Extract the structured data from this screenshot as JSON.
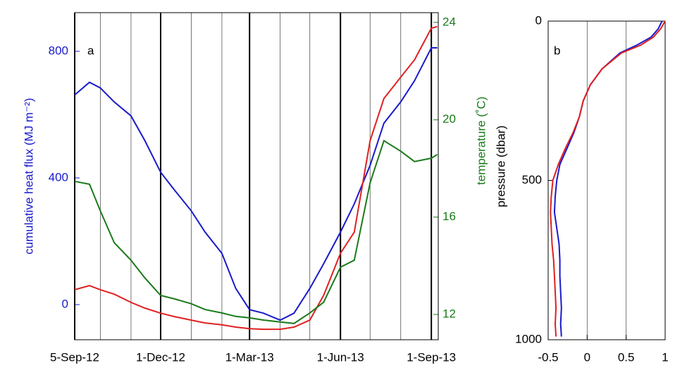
{
  "chart_data": [
    {
      "type": "line",
      "annotation": "a",
      "ylabel": "cumulative heat flux (MJ m⁻²)",
      "y2label": "temperature (˚C)",
      "x": [
        "2012-09-05",
        "2012-09-20",
        "2012-10-01",
        "2012-10-15",
        "2012-11-01",
        "2012-11-15",
        "2012-12-01",
        "2012-12-15",
        "2013-01-01",
        "2013-01-15",
        "2013-02-01",
        "2013-02-15",
        "2013-03-01",
        "2013-03-15",
        "2013-04-01",
        "2013-04-15",
        "2013-05-01",
        "2013-05-15",
        "2013-06-01",
        "2013-06-15",
        "2013-07-01",
        "2013-07-15",
        "2013-08-01",
        "2013-08-15",
        "2013-09-01",
        "2013-09-07"
      ],
      "xlim": [
        "2012-09-05",
        "2013-09-08"
      ],
      "xticks": [
        {
          "value": "2012-09-05",
          "label": "5-Sep-12"
        },
        {
          "value": "2012-12-01",
          "label": "1-Dec-12"
        },
        {
          "value": "2013-03-01",
          "label": "1-Mar-13"
        },
        {
          "value": "2013-06-01",
          "label": "1-Jun-13"
        },
        {
          "value": "2013-09-01",
          "label": "1-Sep-13"
        }
      ],
      "xminorticks": [
        "2012-10-01",
        "2012-11-01",
        "2013-01-01",
        "2013-02-01",
        "2013-04-01",
        "2013-05-01",
        "2013-07-01",
        "2013-08-01"
      ],
      "ylim": [
        -111,
        922
      ],
      "yticks": [
        0,
        400,
        800
      ],
      "y2lim": [
        10.96,
        24.4
      ],
      "y2ticks": [
        12,
        16,
        20,
        24
      ],
      "ylabel_color": "#1a1acc",
      "y2label_color": "#1a7a1a",
      "series": [
        {
          "color": "#1a1acc",
          "values": [
            662,
            702,
            684,
            640,
            596,
            518,
            418,
            362,
            296,
            229,
            162,
            51,
            -16,
            -27,
            -49,
            -27,
            51,
            129,
            229,
            318,
            440,
            573,
            640,
            707,
            811,
            811
          ]
        },
        {
          "color": "#e02020",
          "values": [
            47,
            60,
            47,
            33,
            7,
            -11,
            -27,
            -38,
            -49,
            -58,
            -64,
            -71,
            -76,
            -78,
            -78,
            -71,
            -49,
            29,
            162,
            229,
            518,
            651,
            718,
            773,
            873,
            878
          ]
        },
        {
          "color": "#1a7a1a",
          "axis": "y2",
          "values": [
            17.47,
            17.35,
            16.25,
            14.95,
            14.23,
            13.5,
            12.78,
            12.64,
            12.44,
            12.2,
            12.06,
            11.92,
            11.86,
            11.77,
            11.69,
            11.63,
            12.06,
            12.5,
            13.94,
            14.23,
            17.41,
            19.14,
            18.71,
            18.28,
            18.42,
            18.57
          ]
        }
      ]
    },
    {
      "type": "line",
      "annotation": "b",
      "ylabel": "pressure (dbar)",
      "y": [
        0,
        25,
        50,
        75,
        100,
        150,
        200,
        250,
        300,
        350,
        400,
        450,
        500,
        550,
        600,
        650,
        700,
        750,
        800,
        850,
        900,
        950,
        990
      ],
      "ylim": [
        0,
        1000
      ],
      "y_inverted": true,
      "yticks": [
        0,
        500,
        1000
      ],
      "xlim": [
        -0.5,
        1
      ],
      "xticks": [
        -0.5,
        0,
        0.5,
        1
      ],
      "xgrid": [
        0,
        0.5
      ],
      "series": [
        {
          "color": "#1a1acc",
          "values": [
            0.96,
            0.91,
            0.82,
            0.64,
            0.42,
            0.19,
            0.04,
            -0.05,
            -0.1,
            -0.17,
            -0.26,
            -0.35,
            -0.39,
            -0.41,
            -0.42,
            -0.39,
            -0.36,
            -0.35,
            -0.35,
            -0.34,
            -0.33,
            -0.34,
            -0.33
          ]
        },
        {
          "color": "#e02020",
          "values": [
            1.0,
            0.94,
            0.85,
            0.69,
            0.44,
            0.19,
            0.04,
            -0.05,
            -0.1,
            -0.18,
            -0.28,
            -0.37,
            -0.44,
            -0.46,
            -0.47,
            -0.46,
            -0.45,
            -0.43,
            -0.42,
            -0.41,
            -0.4,
            -0.41,
            -0.4
          ]
        }
      ]
    }
  ]
}
